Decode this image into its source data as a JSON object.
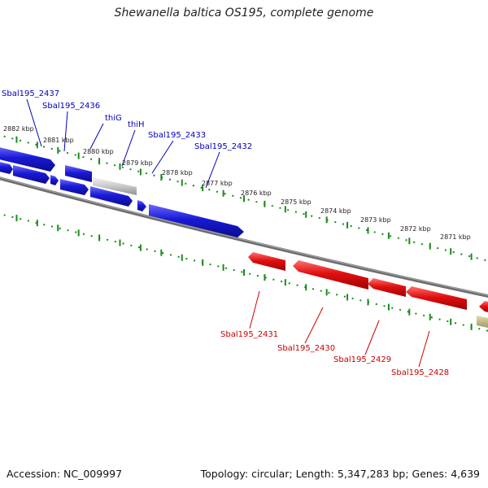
{
  "title": "Shewanella baltica OS195, complete genome",
  "accession_text": "Accession: NC_009997",
  "summary_text": "Topology: circular; Length: 5,347,283 bp; Genes: 4,639",
  "colors": {
    "forward": "#1a1ad6",
    "reverse": "#e01010",
    "backbone": "#7a7a7a",
    "ticks": "#1a8a1a",
    "forward_label": "#0000bb",
    "reverse_label": "#cc0000",
    "rna": "#b8b07a"
  },
  "ticks": [
    "2882 kbp",
    "2881 kbp",
    "2880 kbp",
    "2879 kbp",
    "2878 kbp",
    "2877 kbp",
    "2876 kbp",
    "2875 kbp",
    "2874 kbp",
    "2873 kbp",
    "2872 kbp",
    "2871 kbp"
  ],
  "forward_labels": [
    "Sbal195_2437",
    "Sbal195_2436",
    "thiG",
    "thiH",
    "Sbal195_2433",
    "Sbal195_2432"
  ],
  "reverse_labels": [
    "Sbal195_2431",
    "Sbal195_2430",
    "Sbal195_2429",
    "Sbal195_2428"
  ]
}
